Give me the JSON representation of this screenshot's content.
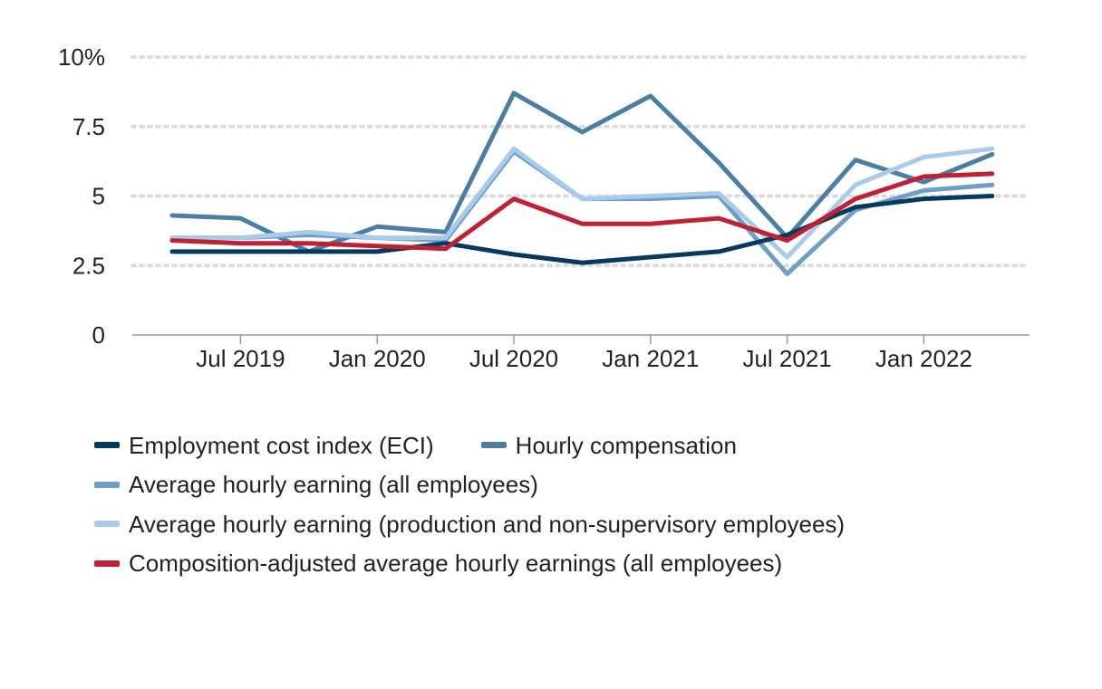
{
  "chart_data": {
    "type": "line",
    "title": "",
    "xlabel": "",
    "ylabel": "",
    "y_unit_suffix": "%",
    "ylim": [
      0,
      10
    ],
    "yticks": [
      {
        "value": 0,
        "label": "0"
      },
      {
        "value": 2.5,
        "label": "2.5"
      },
      {
        "value": 5,
        "label": "5"
      },
      {
        "value": 7.5,
        "label": "7.5"
      },
      {
        "value": 10,
        "label": "10%"
      }
    ],
    "x": [
      "2019-04",
      "2019-07",
      "2019-10",
      "2020-01",
      "2020-04",
      "2020-07",
      "2020-10",
      "2021-01",
      "2021-04",
      "2021-07",
      "2021-10",
      "2022-01",
      "2022-04"
    ],
    "xticks": [
      {
        "x": "2019-07",
        "label": "Jul 2019"
      },
      {
        "x": "2020-01",
        "label": "Jan 2020"
      },
      {
        "x": "2020-07",
        "label": "Jul 2020"
      },
      {
        "x": "2021-01",
        "label": "Jan 2021"
      },
      {
        "x": "2021-07",
        "label": "Jul 2021"
      },
      {
        "x": "2022-01",
        "label": "Jan 2022"
      }
    ],
    "grid": "horizontal dotted",
    "legend_position": "bottom",
    "series": [
      {
        "name": "Hourly compensation",
        "color": "#4a7ea3",
        "values": [
          4.3,
          4.2,
          3.0,
          3.9,
          3.7,
          8.7,
          7.3,
          8.6,
          6.2,
          3.5,
          6.3,
          5.5,
          6.5
        ]
      },
      {
        "name": "Average hourly earning (all employees)",
        "color": "#6f9fc5",
        "values": [
          3.5,
          3.5,
          3.6,
          3.5,
          3.4,
          6.6,
          4.9,
          4.9,
          5.0,
          2.2,
          4.5,
          5.2,
          5.4
        ]
      },
      {
        "name": "Average hourly earning (production and non-supervisory employees)",
        "color": "#a8cbe9",
        "values": [
          3.5,
          3.5,
          3.7,
          3.5,
          3.5,
          6.7,
          4.9,
          5.0,
          5.1,
          2.8,
          5.4,
          6.4,
          6.7
        ]
      },
      {
        "name": "Employment cost index (ECI)",
        "color": "#053a5f",
        "values": [
          3.0,
          3.0,
          3.0,
          3.0,
          3.3,
          2.9,
          2.6,
          2.8,
          3.0,
          3.6,
          4.6,
          4.9,
          5.0
        ]
      },
      {
        "name": "Composition-adjusted average hourly earnings (all employees)",
        "color": "#c02033",
        "values": [
          3.4,
          3.3,
          3.3,
          3.2,
          3.1,
          4.9,
          4.0,
          4.0,
          4.2,
          3.4,
          4.9,
          5.7,
          5.8
        ]
      }
    ]
  },
  "legend": {
    "rows": [
      [
        {
          "label": "Employment cost index (ECI)",
          "color": "#053a5f"
        },
        {
          "label": "Hourly compensation",
          "color": "#4a7ea3"
        }
      ],
      [
        {
          "label": "Average hourly earning (all employees)",
          "color": "#6f9fc5"
        }
      ],
      [
        {
          "label": "Average hourly earning (production and non-supervisory employees)",
          "color": "#a8cbe9"
        }
      ],
      [
        {
          "label": "Composition-adjusted average hourly earnings (all employees)",
          "color": "#c02033"
        }
      ]
    ]
  }
}
